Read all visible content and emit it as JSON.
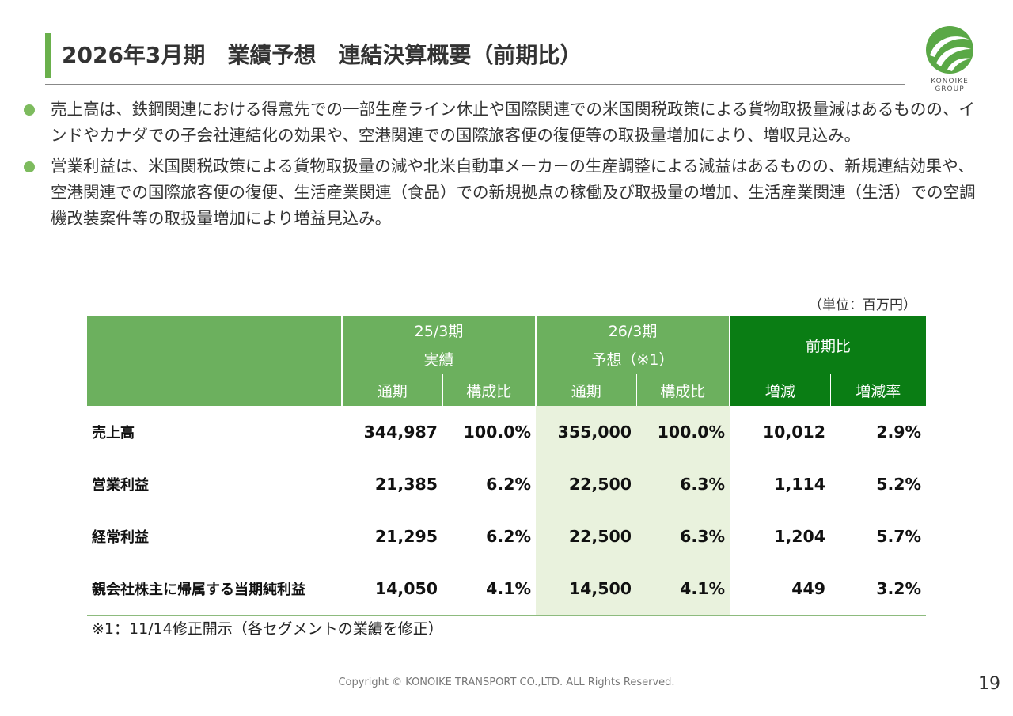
{
  "header": {
    "title": "2026年3月期　業績予想　連結決算概要（前期比）"
  },
  "logo": {
    "text_line1": "KONOIKE",
    "text_line2": "GROUP"
  },
  "bullets": [
    "売上高は、鉄鋼関連における得意先での一部生産ライン休止や国際関連での米国関税政策による貨物取扱量減はあるものの、インドやカナダでの子会社連結化の効果や、空港関連での国際旅客便の復便等の取扱量増加により、増収見込み。",
    "営業利益は、米国関税政策による貨物取扱量の減や北米自動車メーカーの生産調整による減益はあるものの、新規連結効果や、空港関連での国際旅客便の復便、生活産業関連（食品）での新規拠点の稼働及び取扱量の増加、生活産業関連（生活）での空調機改装案件等の取扱量増加により増益見込み。"
  ],
  "table": {
    "unit": "（単位：百万円）",
    "groups": {
      "fy25_line1": "25/3期",
      "fy25_line2": "実績",
      "fy26_line1": "26/3期",
      "fy26_line2": "予想（※1）",
      "yoy": "前期比"
    },
    "subheaders": {
      "full_year": "通期",
      "composition": "構成比",
      "change": "増減",
      "change_rate": "増減率"
    },
    "rows": [
      {
        "label": "売上高",
        "fy25_full": "344,987",
        "fy25_ratio": "100.0%",
        "fy26_full": "355,000",
        "fy26_ratio": "100.0%",
        "change": "10,012",
        "rate": "2.9%"
      },
      {
        "label": "営業利益",
        "fy25_full": "21,385",
        "fy25_ratio": "6.2%",
        "fy26_full": "22,500",
        "fy26_ratio": "6.3%",
        "change": "1,114",
        "rate": "5.2%"
      },
      {
        "label": "経常利益",
        "fy25_full": "21,295",
        "fy25_ratio": "6.2%",
        "fy26_full": "22,500",
        "fy26_ratio": "6.3%",
        "change": "1,204",
        "rate": "5.7%"
      },
      {
        "label": "親会社株主に帰属する当期純利益",
        "fy25_full": "14,050",
        "fy25_ratio": "4.1%",
        "fy26_full": "14,500",
        "fy26_ratio": "4.1%",
        "change": "449",
        "rate": "3.2%"
      }
    ]
  },
  "note": "※1：11/14修正開示（各セグメントの業績を修正）",
  "footer": {
    "copyright": "Copyright © KONOIKE TRANSPORT CO.,LTD.  ALL Rights Reserved.",
    "page_number": "19"
  },
  "colors": {
    "accent_green": "#6ab04c",
    "header_green": "#6cb05e",
    "dark_green": "#0a7d14",
    "forecast_shade": "#e9f2dd"
  }
}
